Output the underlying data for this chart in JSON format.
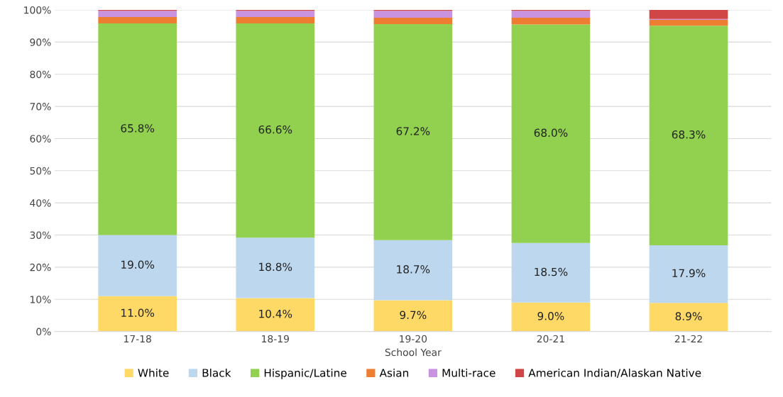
{
  "chart_data": {
    "type": "bar",
    "stacked": true,
    "xlabel": "School Year",
    "categories": [
      "17-18",
      "18-19",
      "19-20",
      "20-21",
      "21-22"
    ],
    "series": [
      {
        "name": "White",
        "color": "#ffd966",
        "values": [
          11.0,
          10.4,
          9.7,
          9.0,
          8.9
        ],
        "value_labels": [
          "11.0%",
          "10.4%",
          "9.7%",
          "9.0%",
          "8.9%"
        ]
      },
      {
        "name": "Black",
        "color": "#bdd7ee",
        "values": [
          19.0,
          18.8,
          18.7,
          18.5,
          17.9
        ],
        "value_labels": [
          "19.0%",
          "18.8%",
          "18.7%",
          "18.5%",
          "17.9%"
        ]
      },
      {
        "name": "Hispanic/Latine",
        "color": "#92d050",
        "values": [
          65.8,
          66.6,
          67.2,
          68.0,
          68.3
        ],
        "value_labels": [
          "65.8%",
          "66.6%",
          "67.2%",
          "68.0%",
          "68.3%"
        ]
      },
      {
        "name": "Asian",
        "color": "#ed7d31",
        "values": [
          2.0,
          2.0,
          2.0,
          2.1,
          1.8
        ]
      },
      {
        "name": "Multi-race",
        "color": "#c993e0",
        "values": [
          1.9,
          1.9,
          2.1,
          2.1,
          0.3
        ]
      },
      {
        "name": "American Indian/Alaskan Native",
        "color": "#d04545",
        "values": [
          0.3,
          0.3,
          0.3,
          0.3,
          2.8
        ]
      }
    ],
    "ylim": [
      0,
      100
    ],
    "yticks": [
      {
        "value": 0,
        "label": "0%"
      },
      {
        "value": 10,
        "label": "10%"
      },
      {
        "value": 20,
        "label": "20%"
      },
      {
        "value": 30,
        "label": "30%"
      },
      {
        "value": 40,
        "label": "40%"
      },
      {
        "value": 50,
        "label": "50%"
      },
      {
        "value": 60,
        "label": "60%"
      },
      {
        "value": 70,
        "label": "70%"
      },
      {
        "value": 80,
        "label": "80%"
      },
      {
        "value": 90,
        "label": "90%"
      },
      {
        "value": 100,
        "label": "100%"
      }
    ],
    "grid": "y",
    "legend": "bottom"
  }
}
